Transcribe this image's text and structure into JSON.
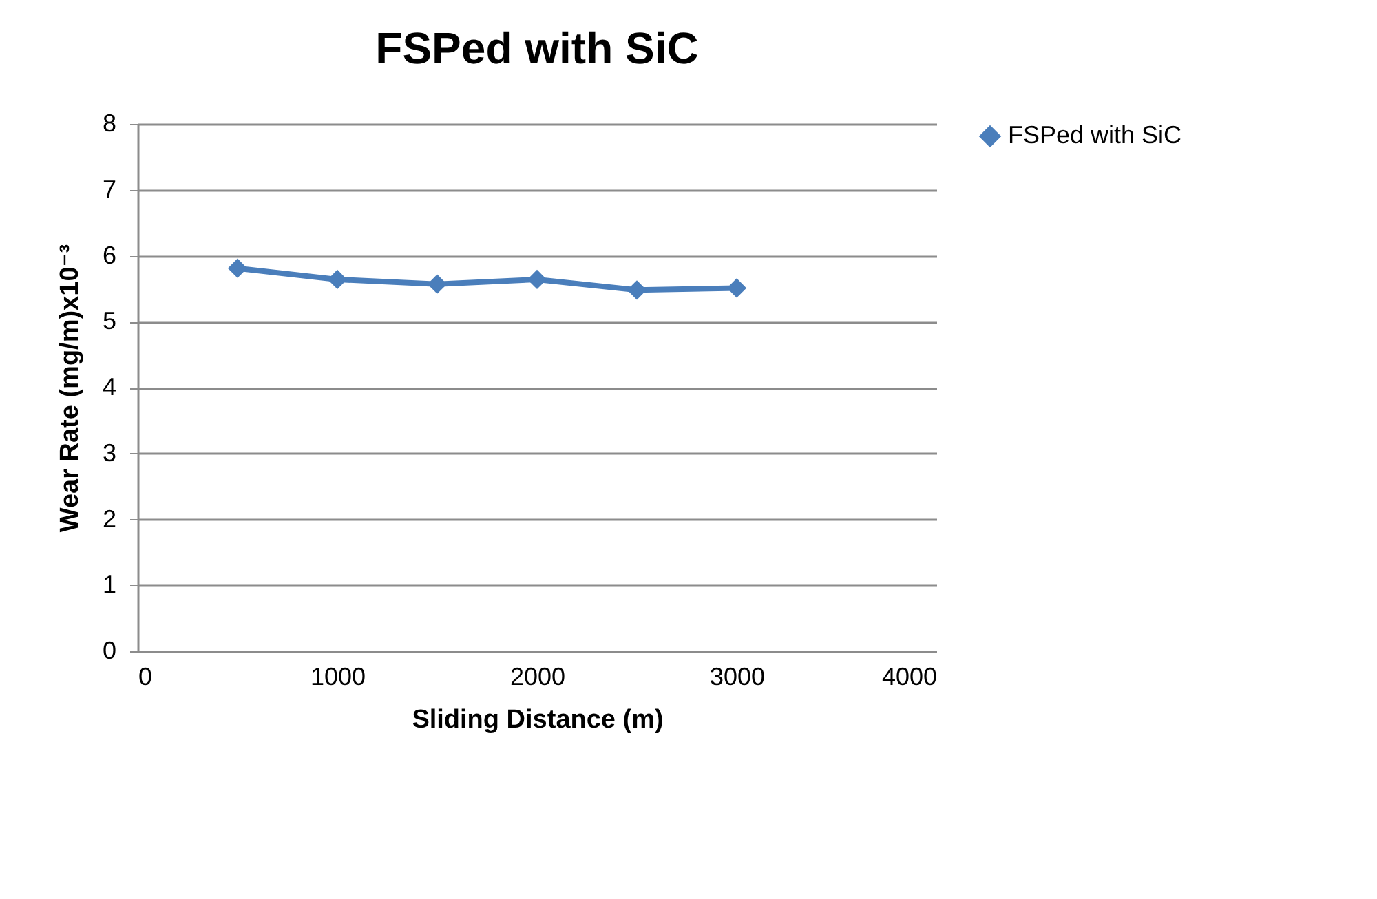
{
  "chart_data": {
    "type": "line",
    "title": "FSPed with SiC",
    "xlabel": "Sliding Distance (m)",
    "ylabel": "Wear Rate (mg/m)x10⁻³",
    "x": [
      500,
      1000,
      1500,
      2000,
      2500,
      3000
    ],
    "series": [
      {
        "name": "FSPed with SiC",
        "color": "#4a7ebb",
        "values": [
          5.81,
          5.64,
          5.57,
          5.64,
          5.48,
          5.51
        ]
      }
    ],
    "xlim": [
      0,
      4000
    ],
    "xticks": [
      0,
      1000,
      2000,
      3000,
      4000
    ],
    "ylim": [
      0,
      8
    ],
    "yticks": [
      0,
      1,
      2,
      3,
      4,
      5,
      6,
      7,
      8
    ],
    "grid": "y",
    "legend": "right",
    "marker": "diamond",
    "line_style": "solid"
  }
}
